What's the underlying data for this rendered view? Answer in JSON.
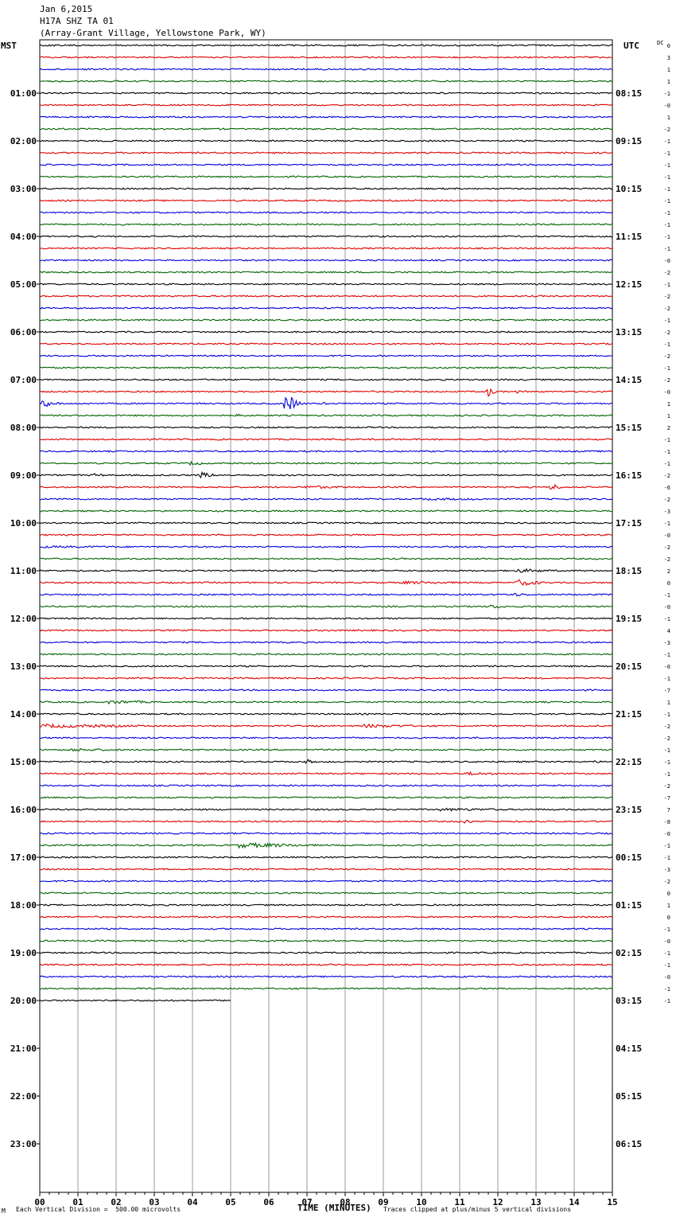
{
  "header": {
    "date": "Jan 6,2015",
    "station": "H17A SHZ TA 01",
    "location": "(Array-Grant Village, Yellowstone Park, WY)"
  },
  "left_tz": "MST",
  "right_tz": "UTC",
  "dc_label": "DC",
  "footer": {
    "mark": "M",
    "scale_note": "Each Vertical Division =  500.00 microvolts",
    "xaxis_title": "TIME (MINUTES)",
    "clip_note": "Traces clipped at plus/minus 5 vertical divisions"
  },
  "chart_data": {
    "type": "line",
    "title": "Jan 6,2015 H17A SHZ TA 01 (Array-Grant Village, Yellowstone Park, WY)",
    "xlabel": "TIME (MINUTES)",
    "xlim": [
      0,
      15
    ],
    "x_ticks": [
      "00",
      "01",
      "02",
      "03",
      "04",
      "05",
      "06",
      "07",
      "08",
      "09",
      "10",
      "11",
      "12",
      "13",
      "14",
      "15"
    ],
    "row_minutes": 15,
    "rows_per_hour": 4,
    "hours": 24,
    "trace_colors": [
      "#000000",
      "#e00000",
      "#0000dd",
      "#006400"
    ],
    "left_hour_labels": [
      "01:00",
      "02:00",
      "03:00",
      "04:00",
      "05:00",
      "06:00",
      "07:00",
      "08:00",
      "09:00",
      "10:00",
      "11:00",
      "12:00",
      "13:00",
      "14:00",
      "15:00",
      "16:00",
      "17:00",
      "18:00",
      "19:00",
      "20:00",
      "21:00",
      "22:00",
      "23:00"
    ],
    "right_hour_labels": [
      "08:15",
      "09:15",
      "10:15",
      "11:15",
      "12:15",
      "13:15",
      "14:15",
      "15:15",
      "16:15",
      "17:15",
      "18:15",
      "19:15",
      "20:15",
      "21:15",
      "22:15",
      "23:15",
      "00:15",
      "01:15",
      "02:15",
      "03:15",
      "04:15",
      "05:15",
      "06:15"
    ],
    "dc_offsets": [
      "0",
      "3",
      "1",
      "1",
      "-1",
      "-0",
      "1",
      "-2",
      "-1",
      "-1",
      "-1",
      "-1",
      "-1",
      "-1",
      "-1",
      "-1",
      "-1",
      "-1",
      "-0",
      "-2",
      "-1",
      "-2",
      "-2",
      "-1",
      "-2",
      "-1",
      "-2",
      "-1",
      "-2",
      "-0",
      "1",
      "1",
      "2",
      "-1",
      "-1",
      "-1",
      "-2",
      "-6",
      "-2",
      "-3",
      "-1",
      "-0",
      "-2",
      "-2",
      "2",
      "0",
      "-1",
      "-0",
      "-1",
      "4",
      "-3",
      "-1",
      "-0",
      "-1",
      "-7",
      "1",
      "-1",
      "-2",
      "-2",
      "-1",
      "-1",
      "-1",
      "-2",
      "-7",
      "7",
      "-8",
      "-0",
      "-1",
      "-1",
      "-3",
      "-2",
      "0",
      "1",
      "0",
      "-1",
      "-0",
      "-1",
      "-1",
      "-0",
      "-1",
      "-1"
    ],
    "traces_recorded": 81,
    "last_trace_end_minute": 5.0,
    "events": [
      {
        "trace": 29,
        "minute": 11.75,
        "amp": 4.0,
        "dur": 0.25
      },
      {
        "trace": 29,
        "minute": 12.5,
        "amp": 1.2,
        "dur": 0.2
      },
      {
        "trace": 30,
        "minute": 0.1,
        "amp": 4.0,
        "dur": 0.3
      },
      {
        "trace": 30,
        "minute": 0.45,
        "amp": 1.6,
        "dur": 0.2
      },
      {
        "trace": 30,
        "minute": 6.45,
        "amp": 8.0,
        "dur": 0.45
      },
      {
        "trace": 30,
        "minute": 7.4,
        "amp": 1.5,
        "dur": 0.2
      },
      {
        "trace": 31,
        "minute": 5.2,
        "amp": 1.6,
        "dur": 0.3
      },
      {
        "trace": 35,
        "minute": 3.9,
        "amp": 1.5,
        "dur": 0.8
      },
      {
        "trace": 36,
        "minute": 1.4,
        "amp": 1.5,
        "dur": 0.5
      },
      {
        "trace": 36,
        "minute": 4.2,
        "amp": 2.5,
        "dur": 0.6
      },
      {
        "trace": 37,
        "minute": 7.0,
        "amp": 1.3,
        "dur": 1.8
      },
      {
        "trace": 37,
        "minute": 13.4,
        "amp": 3.0,
        "dur": 0.4
      },
      {
        "trace": 38,
        "minute": 10.0,
        "amp": 1.0,
        "dur": 4.5
      },
      {
        "trace": 42,
        "minute": 0.0,
        "amp": 0.9,
        "dur": 6.5
      },
      {
        "trace": 44,
        "minute": 12.5,
        "amp": 1.5,
        "dur": 1.8
      },
      {
        "trace": 45,
        "minute": 9.5,
        "amp": 1.2,
        "dur": 3.0
      },
      {
        "trace": 45,
        "minute": 12.5,
        "amp": 2.6,
        "dur": 1.0
      },
      {
        "trace": 46,
        "minute": 12.3,
        "amp": 1.5,
        "dur": 1.0
      },
      {
        "trace": 47,
        "minute": 11.8,
        "amp": 1.6,
        "dur": 0.8
      },
      {
        "trace": 55,
        "minute": 1.8,
        "amp": 1.5,
        "dur": 2.0
      },
      {
        "trace": 57,
        "minute": 0.0,
        "amp": 1.5,
        "dur": 5.0
      },
      {
        "trace": 57,
        "minute": 8.5,
        "amp": 1.5,
        "dur": 2.5
      },
      {
        "trace": 59,
        "minute": 0.8,
        "amp": 1.2,
        "dur": 2.5
      },
      {
        "trace": 60,
        "minute": 7.0,
        "amp": 2.0,
        "dur": 0.3
      },
      {
        "trace": 60,
        "minute": 14.5,
        "amp": 1.0,
        "dur": 0.5
      },
      {
        "trace": 61,
        "minute": 11.2,
        "amp": 1.5,
        "dur": 1.3
      },
      {
        "trace": 64,
        "minute": 10.5,
        "amp": 1.2,
        "dur": 3.0
      },
      {
        "trace": 65,
        "minute": 11.1,
        "amp": 2.0,
        "dur": 0.4
      },
      {
        "trace": 67,
        "minute": 5.2,
        "amp": 2.0,
        "dur": 3.0
      }
    ]
  }
}
